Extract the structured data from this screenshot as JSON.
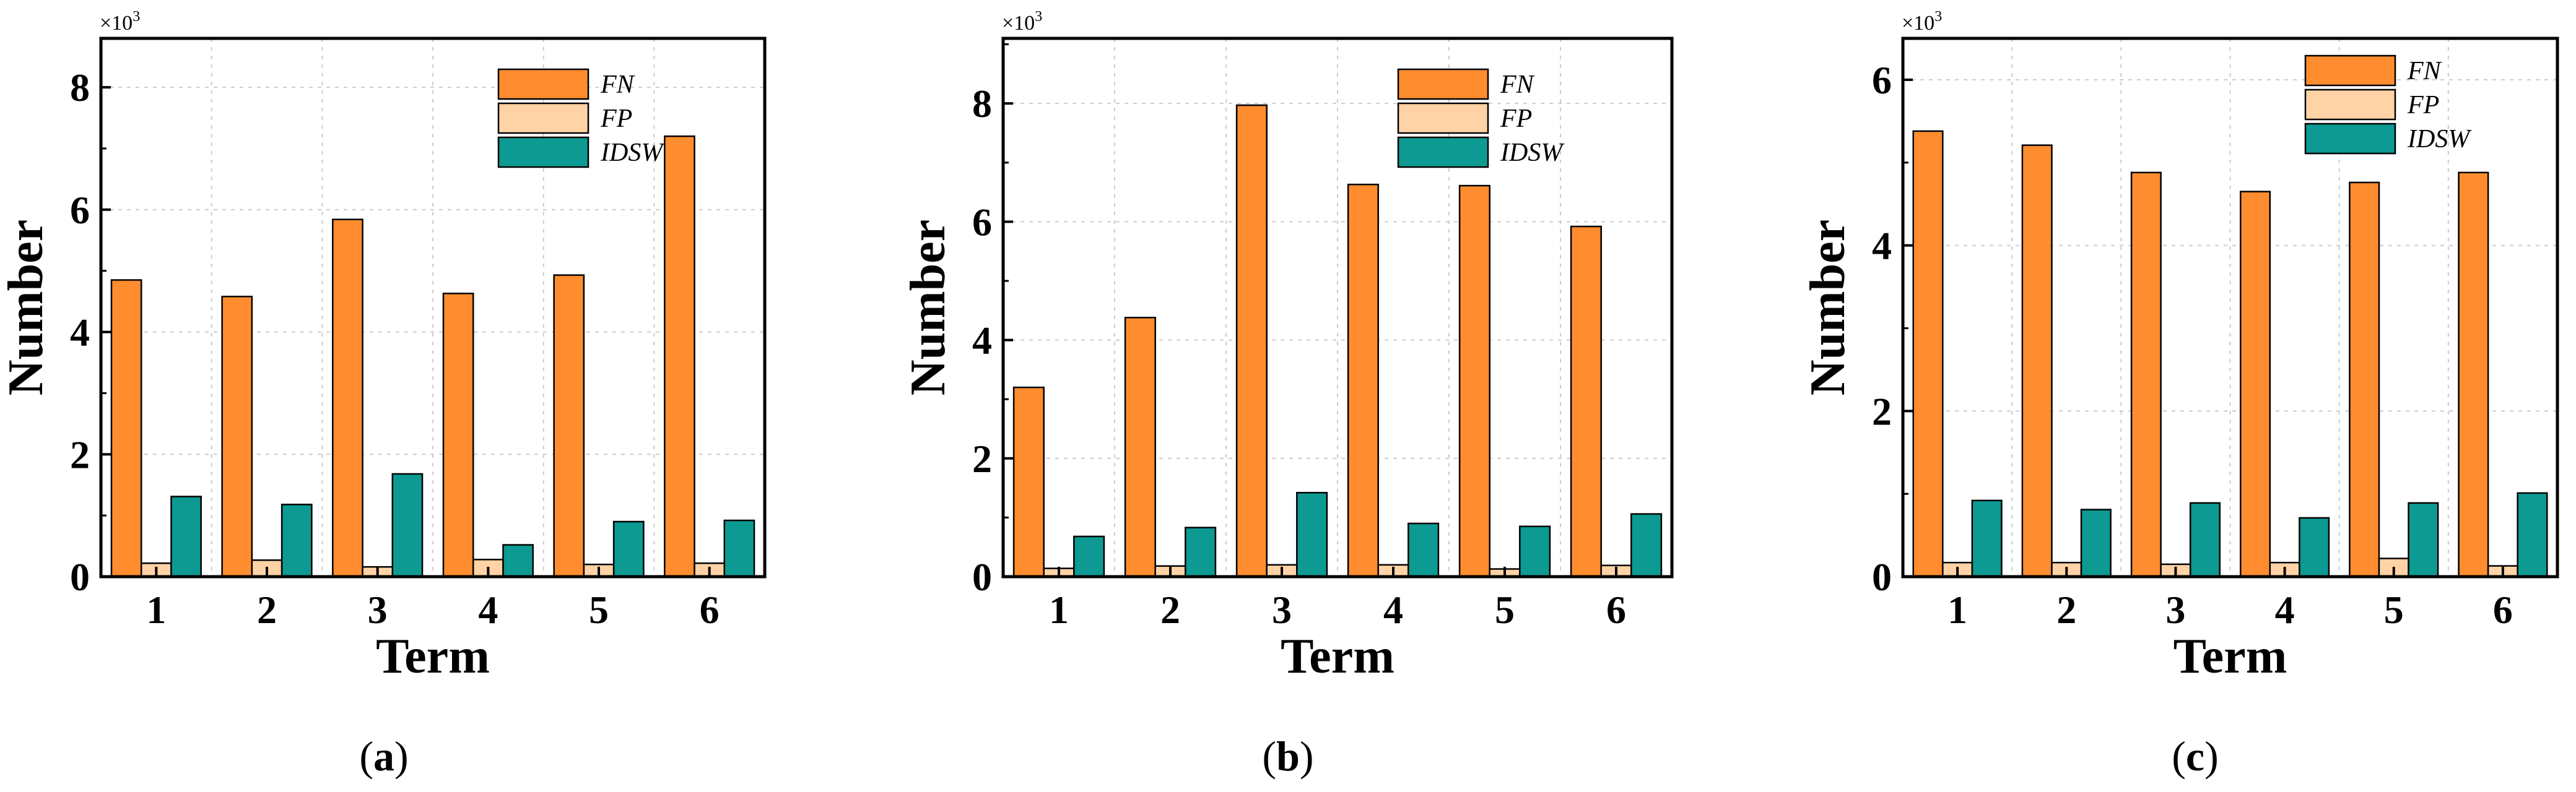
{
  "figure": {
    "description_layout": "three bar charts side by side"
  },
  "colors": {
    "FN": "#FF8C2E",
    "FP": "#FFD3A6",
    "IDSW": "#0C9A92"
  },
  "chart_data": [
    {
      "type": "bar",
      "panel_label": "a",
      "multiplier_label": "×10",
      "multiplier_exp": "3",
      "xlabel": "Term",
      "ylabel": "Number",
      "categories": [
        "1",
        "2",
        "3",
        "4",
        "5",
        "6"
      ],
      "ylim": [
        0,
        8.8
      ],
      "yticks": [
        0,
        2,
        4,
        6,
        8
      ],
      "ytick_labels": [
        "0",
        "2",
        "4",
        "6",
        "8"
      ],
      "series": [
        {
          "name": "FN",
          "values": [
            4.85,
            4.58,
            5.84,
            4.63,
            4.93,
            7.2
          ]
        },
        {
          "name": "FP",
          "values": [
            0.22,
            0.27,
            0.16,
            0.28,
            0.2,
            0.22
          ]
        },
        {
          "name": "IDSW",
          "values": [
            1.31,
            1.18,
            1.68,
            0.52,
            0.9,
            0.92
          ]
        }
      ],
      "legend": [
        "FN",
        "FP",
        "IDSW"
      ],
      "legend_position": "top-right"
    },
    {
      "type": "bar",
      "panel_label": "b",
      "multiplier_label": "×10",
      "multiplier_exp": "3",
      "xlabel": "Term",
      "ylabel": "Number",
      "categories": [
        "1",
        "2",
        "3",
        "4",
        "5",
        "6"
      ],
      "ylim": [
        0,
        9.1
      ],
      "yticks": [
        0,
        2,
        4,
        6,
        8
      ],
      "ytick_labels": [
        "0",
        "2",
        "4",
        "6",
        "8"
      ],
      "series": [
        {
          "name": "FN",
          "values": [
            3.2,
            4.38,
            7.97,
            6.63,
            6.61,
            5.92
          ]
        },
        {
          "name": "FP",
          "values": [
            0.14,
            0.18,
            0.2,
            0.2,
            0.13,
            0.19
          ]
        },
        {
          "name": "IDSW",
          "values": [
            0.68,
            0.83,
            1.42,
            0.9,
            0.85,
            1.06
          ]
        }
      ],
      "legend": [
        "FN",
        "FP",
        "IDSW"
      ],
      "legend_position": "top-right"
    },
    {
      "type": "bar",
      "panel_label": "c",
      "multiplier_label": "×10",
      "multiplier_exp": "3",
      "xlabel": "Term",
      "ylabel": "Number",
      "categories": [
        "1",
        "2",
        "3",
        "4",
        "5",
        "6"
      ],
      "ylim": [
        0,
        6.5
      ],
      "yticks": [
        0,
        2,
        4,
        6
      ],
      "ytick_labels": [
        "0",
        "2",
        "4",
        "6"
      ],
      "series": [
        {
          "name": "FN",
          "values": [
            5.38,
            5.21,
            4.88,
            4.65,
            4.76,
            4.88
          ]
        },
        {
          "name": "FP",
          "values": [
            0.17,
            0.17,
            0.15,
            0.17,
            0.22,
            0.13
          ]
        },
        {
          "name": "IDSW",
          "values": [
            0.92,
            0.81,
            0.89,
            0.71,
            0.89,
            1.01
          ]
        }
      ],
      "legend": [
        "FN",
        "FP",
        "IDSW"
      ],
      "legend_position": "top-right"
    }
  ]
}
